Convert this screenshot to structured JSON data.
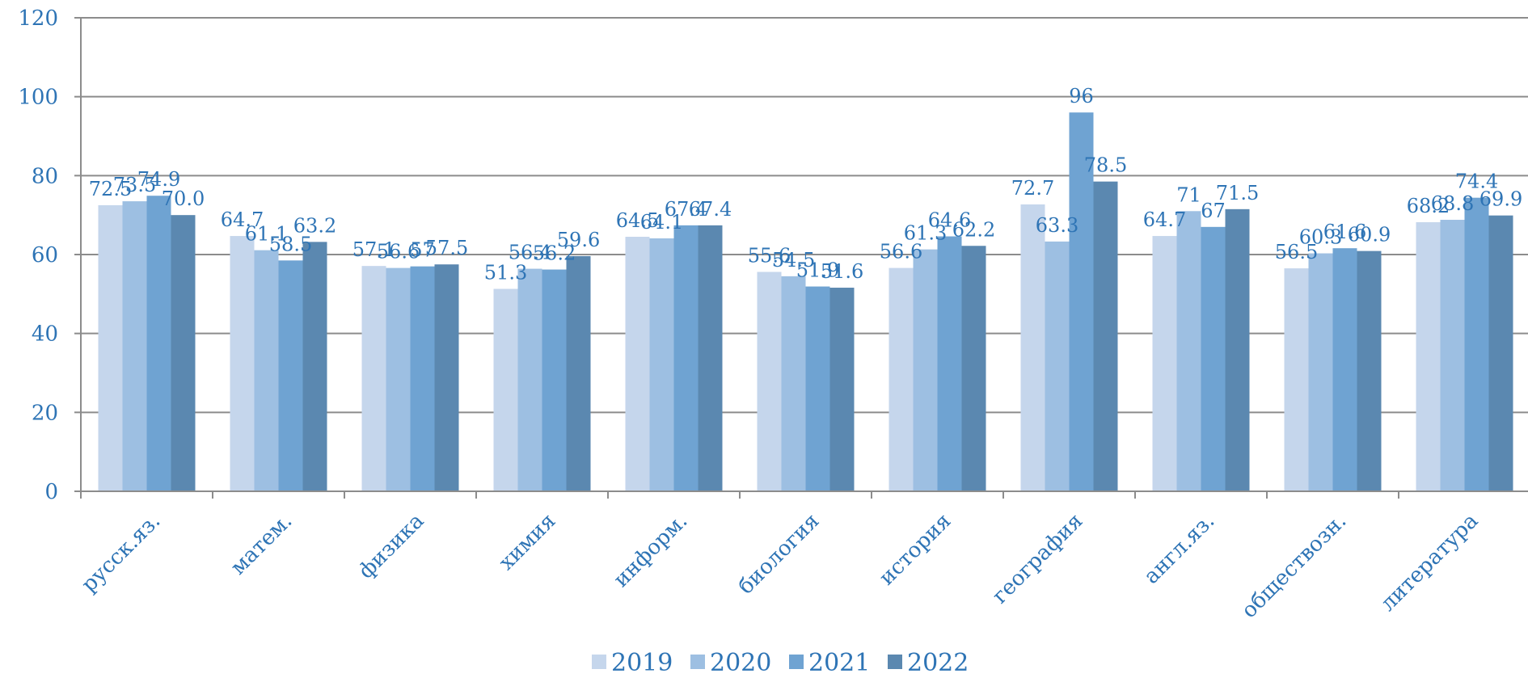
{
  "chart_data": {
    "type": "bar",
    "categories": [
      "русск.яз.",
      "матем.",
      "физика",
      "химия",
      "информ.",
      "биология",
      "история",
      "география",
      "англ.яз.",
      "обществозн.",
      "литература"
    ],
    "series": [
      {
        "name": "2019",
        "color": "#c5d6ec",
        "values": [
          72.5,
          64.7,
          57.1,
          51.3,
          64.5,
          55.6,
          56.6,
          72.7,
          64.7,
          56.5,
          68.2
        ],
        "labels": [
          "72.5",
          "64.7",
          "57.1",
          "51.3",
          "64.5",
          "55.6",
          "56.6",
          "72.7",
          "64.7",
          "56.5",
          "68.2"
        ]
      },
      {
        "name": "2020",
        "color": "#9dbfe2",
        "values": [
          73.5,
          61.1,
          56.6,
          56.4,
          64.1,
          54.5,
          61.3,
          63.3,
          71,
          60.3,
          68.8
        ],
        "labels": [
          "73.5",
          "61.1",
          "56.6",
          "56.4",
          "64.1",
          "54.5",
          "61.3",
          "63.3",
          "71",
          "60.3",
          "68.8"
        ]
      },
      {
        "name": "2021",
        "color": "#6fa3d2",
        "values": [
          74.9,
          58.5,
          57,
          56.2,
          67.4,
          51.9,
          64.6,
          96,
          67,
          61.6,
          74.4
        ],
        "labels": [
          "74.9",
          "58.5",
          "57",
          "56.2",
          "67.4",
          "51.9",
          "64.6",
          "96",
          "67",
          "61.6",
          "74.4"
        ]
      },
      {
        "name": "2022",
        "color": "#5b88b0",
        "values": [
          70.0,
          63.2,
          57.5,
          59.6,
          67.4,
          51.6,
          62.2,
          78.5,
          71.5,
          60.9,
          69.9
        ],
        "labels": [
          "70.0",
          "63.2",
          "57.5",
          "59.6",
          "67.4",
          "51.6",
          "62.2",
          "78.5",
          "71.5",
          "60.9",
          "69.9"
        ]
      }
    ],
    "ylim": [
      0,
      120
    ],
    "yticks": [
      "0",
      "20",
      "40",
      "60",
      "80",
      "100",
      "120"
    ],
    "grid": true,
    "legend_position": "bottom"
  }
}
